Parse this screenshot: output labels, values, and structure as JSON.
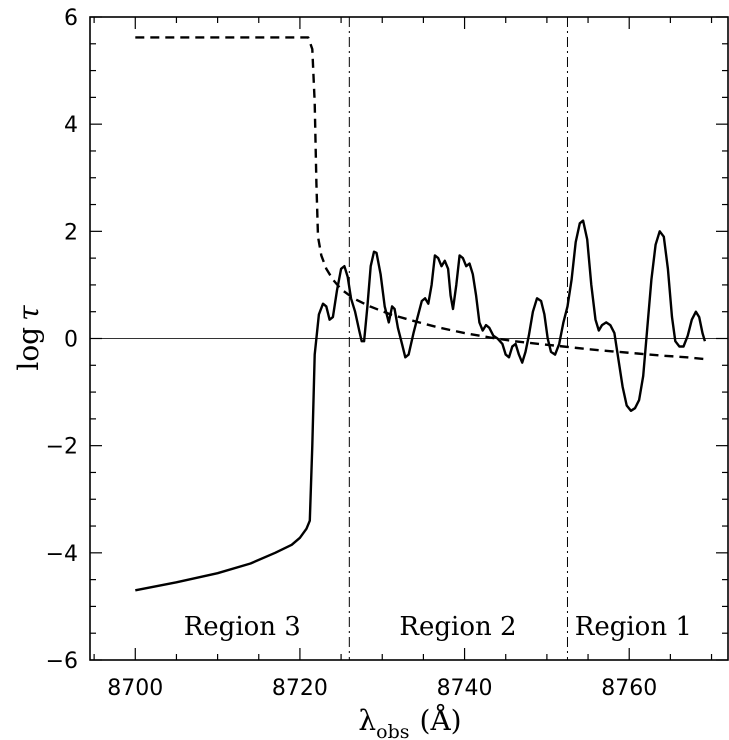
{
  "chart_data": {
    "type": "line",
    "title": "",
    "xlabel": "λ_obs (Å)",
    "xlabel_parts": {
      "symbol": "λ",
      "subscript": "obs",
      "unit": "(Å)"
    },
    "ylabel": "log τ",
    "ylabel_parts": {
      "prefix": "log",
      "symbol": "τ"
    },
    "xlim": [
      8694.5,
      8772
    ],
    "ylim": [
      -6,
      6
    ],
    "x_ticks": [
      8700,
      8720,
      8740,
      8760
    ],
    "x_tick_labels": [
      "8700",
      "8720",
      "8740",
      "8760"
    ],
    "y_ticks": [
      -6,
      -4,
      -2,
      0,
      2,
      4,
      6
    ],
    "y_tick_labels": [
      "−6",
      "−4",
      "−2",
      "0",
      "2",
      "4",
      "6"
    ],
    "grid": false,
    "reference_lines": {
      "horizontal": [
        0
      ],
      "vertical_dashdot": [
        8726,
        8752.5
      ]
    },
    "regions": [
      {
        "label": "Region 3",
        "x_center": 8713
      },
      {
        "label": "Region 2",
        "x_center": 8739.2
      },
      {
        "label": "Region 1",
        "x_center": 8760.5
      }
    ],
    "series": [
      {
        "style": "solid",
        "points": [
          [
            8700,
            -4.7
          ],
          [
            8705,
            -4.55
          ],
          [
            8710,
            -4.38
          ],
          [
            8714,
            -4.2
          ],
          [
            8717,
            -4.0
          ],
          [
            8719,
            -3.85
          ],
          [
            8720,
            -3.72
          ],
          [
            8720.8,
            -3.55
          ],
          [
            8721.2,
            -3.4
          ],
          [
            8721.5,
            -2.0
          ],
          [
            8721.8,
            -0.3
          ],
          [
            8722.3,
            0.45
          ],
          [
            8722.8,
            0.65
          ],
          [
            8723.2,
            0.6
          ],
          [
            8723.6,
            0.35
          ],
          [
            8724.0,
            0.4
          ],
          [
            8724.5,
            0.9
          ],
          [
            8725.0,
            1.3
          ],
          [
            8725.4,
            1.35
          ],
          [
            8725.8,
            1.15
          ],
          [
            8726.2,
            0.75
          ],
          [
            8726.7,
            0.5
          ],
          [
            8727.2,
            0.15
          ],
          [
            8727.5,
            -0.05
          ],
          [
            8727.8,
            -0.05
          ],
          [
            8728.2,
            0.6
          ],
          [
            8728.6,
            1.35
          ],
          [
            8729.0,
            1.62
          ],
          [
            8729.3,
            1.6
          ],
          [
            8729.8,
            1.2
          ],
          [
            8730.3,
            0.6
          ],
          [
            8730.8,
            0.3
          ],
          [
            8731.2,
            0.6
          ],
          [
            8731.5,
            0.55
          ],
          [
            8731.9,
            0.2
          ],
          [
            8732.4,
            -0.1
          ],
          [
            8732.8,
            -0.35
          ],
          [
            8733.2,
            -0.3
          ],
          [
            8733.8,
            0.1
          ],
          [
            8734.3,
            0.4
          ],
          [
            8734.8,
            0.7
          ],
          [
            8735.2,
            0.75
          ],
          [
            8735.6,
            0.65
          ],
          [
            8736.0,
            1.0
          ],
          [
            8736.4,
            1.55
          ],
          [
            8736.8,
            1.5
          ],
          [
            8737.2,
            1.35
          ],
          [
            8737.6,
            1.45
          ],
          [
            8738.0,
            1.3
          ],
          [
            8738.3,
            0.8
          ],
          [
            8738.6,
            0.55
          ],
          [
            8739.0,
            1.0
          ],
          [
            8739.4,
            1.55
          ],
          [
            8739.8,
            1.5
          ],
          [
            8740.2,
            1.35
          ],
          [
            8740.6,
            1.4
          ],
          [
            8741.0,
            1.2
          ],
          [
            8741.4,
            0.8
          ],
          [
            8741.8,
            0.3
          ],
          [
            8742.2,
            0.15
          ],
          [
            8742.6,
            0.25
          ],
          [
            8743.0,
            0.2
          ],
          [
            8743.5,
            0.05
          ],
          [
            8744.0,
            0.0
          ],
          [
            8744.6,
            -0.1
          ],
          [
            8745.0,
            -0.3
          ],
          [
            8745.4,
            -0.35
          ],
          [
            8745.8,
            -0.15
          ],
          [
            8746.2,
            -0.1
          ],
          [
            8746.6,
            -0.3
          ],
          [
            8747.0,
            -0.45
          ],
          [
            8747.4,
            -0.25
          ],
          [
            8747.8,
            0.05
          ],
          [
            8748.3,
            0.5
          ],
          [
            8748.8,
            0.75
          ],
          [
            8749.3,
            0.7
          ],
          [
            8749.7,
            0.45
          ],
          [
            8750.1,
            0.0
          ],
          [
            8750.5,
            -0.25
          ],
          [
            8751.0,
            -0.3
          ],
          [
            8751.5,
            -0.1
          ],
          [
            8752.0,
            0.3
          ],
          [
            8752.5,
            0.6
          ],
          [
            8753.0,
            1.1
          ],
          [
            8753.5,
            1.8
          ],
          [
            8754.0,
            2.15
          ],
          [
            8754.4,
            2.2
          ],
          [
            8754.9,
            1.85
          ],
          [
            8755.4,
            1.0
          ],
          [
            8755.9,
            0.35
          ],
          [
            8756.3,
            0.15
          ],
          [
            8756.7,
            0.25
          ],
          [
            8757.2,
            0.3
          ],
          [
            8757.7,
            0.25
          ],
          [
            8758.2,
            0.1
          ],
          [
            8758.7,
            -0.4
          ],
          [
            8759.2,
            -0.9
          ],
          [
            8759.7,
            -1.25
          ],
          [
            8760.2,
            -1.35
          ],
          [
            8760.7,
            -1.3
          ],
          [
            8761.2,
            -1.15
          ],
          [
            8761.7,
            -0.7
          ],
          [
            8762.2,
            0.2
          ],
          [
            8762.7,
            1.1
          ],
          [
            8763.2,
            1.75
          ],
          [
            8763.7,
            2.0
          ],
          [
            8764.2,
            1.9
          ],
          [
            8764.7,
            1.3
          ],
          [
            8765.2,
            0.4
          ],
          [
            8765.6,
            -0.05
          ],
          [
            8766.1,
            -0.15
          ],
          [
            8766.6,
            -0.15
          ],
          [
            8767.1,
            0.05
          ],
          [
            8767.6,
            0.35
          ],
          [
            8768.1,
            0.5
          ],
          [
            8768.5,
            0.4
          ],
          [
            8768.9,
            0.1
          ],
          [
            8769.2,
            -0.05
          ]
        ]
      },
      {
        "style": "dashed",
        "points": [
          [
            8700,
            5.62
          ],
          [
            8721.0,
            5.62
          ],
          [
            8721.5,
            5.4
          ],
          [
            8721.8,
            4.4
          ],
          [
            8722.0,
            2.9
          ],
          [
            8722.2,
            1.9
          ],
          [
            8722.6,
            1.55
          ],
          [
            8723.2,
            1.3
          ],
          [
            8724.0,
            1.1
          ],
          [
            8725.0,
            0.92
          ],
          [
            8726.5,
            0.75
          ],
          [
            8728.5,
            0.6
          ],
          [
            8731.0,
            0.45
          ],
          [
            8734.0,
            0.32
          ],
          [
            8737.0,
            0.2
          ],
          [
            8740.0,
            0.1
          ],
          [
            8743.0,
            0.02
          ],
          [
            8746.0,
            -0.05
          ],
          [
            8749.0,
            -0.1
          ],
          [
            8752.0,
            -0.15
          ],
          [
            8755.0,
            -0.2
          ],
          [
            8758.0,
            -0.24
          ],
          [
            8761.0,
            -0.28
          ],
          [
            8764.0,
            -0.32
          ],
          [
            8767.0,
            -0.35
          ],
          [
            8769.0,
            -0.38
          ]
        ]
      }
    ]
  }
}
